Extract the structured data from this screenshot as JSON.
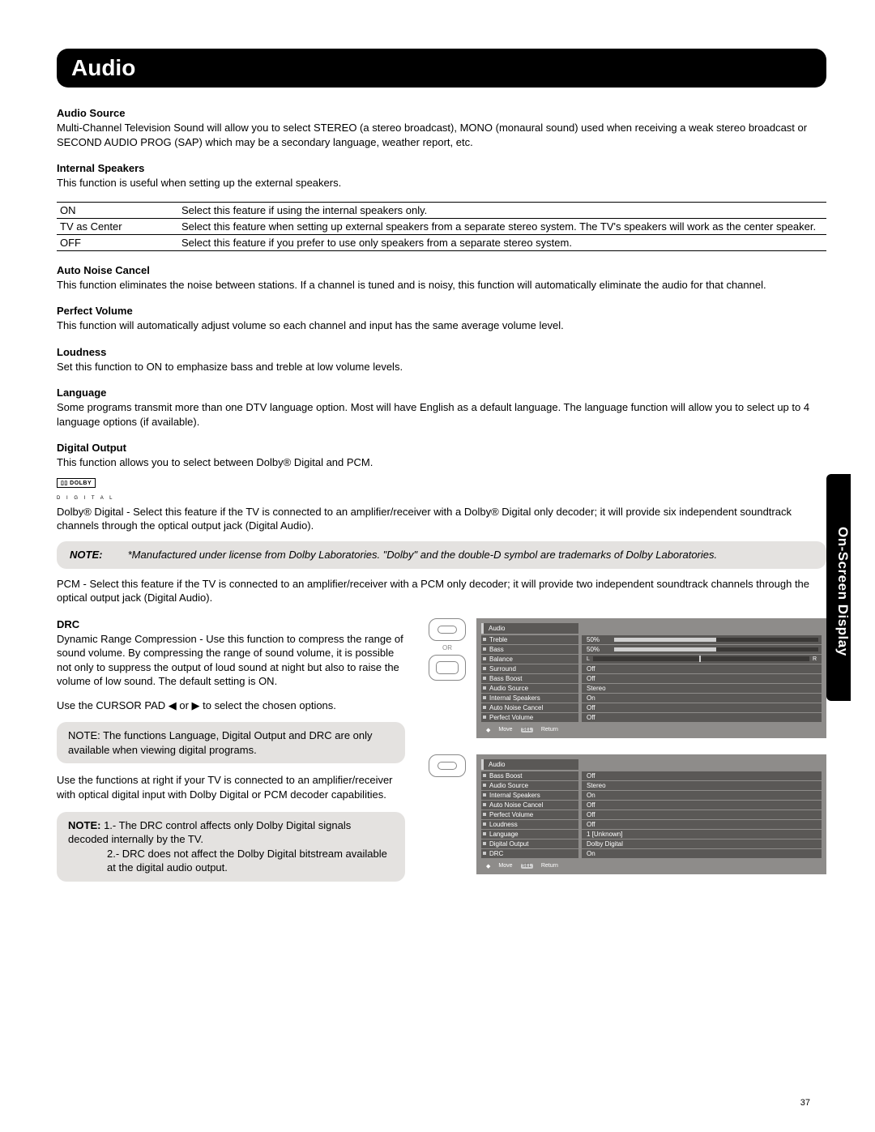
{
  "page": {
    "title": "Audio",
    "side_tab": "On-Screen Display",
    "page_number": "37"
  },
  "sections": {
    "audio_source": {
      "head": "Audio Source",
      "body": "Multi-Channel Television Sound will allow you to select STEREO (a stereo broadcast), MONO (monaural sound) used when receiving a weak stereo broadcast or SECOND AUDIO PROG (SAP) which may be a secondary language, weather report, etc."
    },
    "internal_speakers": {
      "head": "Internal Speakers",
      "body": "This function is useful when setting up the external speakers.",
      "table": {
        "r1c1": "ON",
        "r1c2": "Select this feature if using the internal speakers only.",
        "r2c1": "TV as Center",
        "r2c2": "Select this feature when setting up external speakers from a separate stereo system. The TV's speakers will work as the center speaker.",
        "r3c1": "OFF",
        "r3c2": "Select this feature if you prefer to use only speakers from a separate stereo system."
      }
    },
    "auto_noise": {
      "head": "Auto Noise Cancel",
      "body": "This function eliminates the noise between stations. If a channel is tuned and is noisy, this function will automatically eliminate the audio for that channel."
    },
    "perfect_volume": {
      "head": "Perfect Volume",
      "body": "This function will automatically adjust volume so each channel  and input has the same average volume level."
    },
    "loudness": {
      "head": "Loudness",
      "body": "Set this function to ON to emphasize bass and treble at low volume levels."
    },
    "language": {
      "head": "Language",
      "body": "Some programs transmit more than one DTV language option.  Most will have English as a default language.  The language function will allow you to select up to 4 language options (if available)."
    },
    "digital_output": {
      "head": "Digital Output",
      "body": "This function allows you to select between Dolby® Digital and PCM.",
      "dolby_badge": "▯▯ DOLBY",
      "dolby_sub": "D I G I T A L",
      "dolby_text": "Dolby® Digital - Select this feature if the TV is connected to an amplifier/receiver with a Dolby® Digital only decoder; it  will provide six independent soundtrack channels through the optical output jack (Digital Audio).",
      "note_label": "NOTE:",
      "note_text": "*Manufactured under license from Dolby Laboratories.  \"Dolby\" and the double-D symbol are trademarks of Dolby Laboratories.",
      "pcm_text": "PCM - Select this feature if the TV is connected to an amplifier/receiver with a PCM only decoder; it will provide two independent soundtrack channels through the optical output jack (Digital Audio)."
    },
    "drc": {
      "head": "DRC",
      "body": "Dynamic Range Compression - Use this function to compress the range of sound volume. By compressing the range of sound volume, it is possible not only to suppress the output of loud sound at night but also to raise the volume of low sound. The default setting is ON.",
      "cursor": "Use the CURSOR PAD ◀ or ▶ to select the chosen options.",
      "note1": "NOTE:  The functions Language, Digital Output and DRC are only available when viewing digital programs.",
      "amp": "Use the functions at right if your TV is connected to an amplifier/receiver with optical digital input with Dolby Digital or PCM decoder capabilities.",
      "note2_label": "NOTE:",
      "note2_1": "1.- The DRC control affects only Dolby Digital signals decoded internally by the TV.",
      "note2_2": "2.- DRC does not affect the Dolby Digital bitstream available at the digital audio output."
    }
  },
  "osd1": {
    "title": "Audio",
    "or": "OR",
    "rows": [
      {
        "label": "Treble",
        "value": "50%",
        "bar": true
      },
      {
        "label": "Bass",
        "value": "50%",
        "bar": true
      },
      {
        "label": "Balance",
        "value": "L / R",
        "balance": true
      },
      {
        "label": "Surround",
        "value": "Off"
      },
      {
        "label": "Bass Boost",
        "value": "Off"
      },
      {
        "label": "Audio Source",
        "value": "Stereo"
      },
      {
        "label": "Internal Speakers",
        "value": "On"
      },
      {
        "label": "Auto Noise Cancel",
        "value": "Off"
      },
      {
        "label": "Perfect Volume",
        "value": "Off"
      }
    ],
    "footer_move": "Move",
    "footer_sel": "SEL",
    "footer_return": "Return"
  },
  "osd2": {
    "title": "Audio",
    "rows": [
      {
        "label": "Bass Boost",
        "value": "Off"
      },
      {
        "label": "Audio Source",
        "value": "Stereo"
      },
      {
        "label": "Internal Speakers",
        "value": "On"
      },
      {
        "label": "Auto Noise Cancel",
        "value": "Off"
      },
      {
        "label": "Perfect Volume",
        "value": "Off"
      },
      {
        "label": "Loudness",
        "value": "Off"
      },
      {
        "label": "Language",
        "value": "1 [Unknown]"
      },
      {
        "label": "Digital Output",
        "value": "Dolby Digital"
      },
      {
        "label": "DRC",
        "value": "On"
      }
    ],
    "footer_move": "Move",
    "footer_sel": "SEL",
    "footer_return": "Return"
  },
  "colors": {
    "osd_bg": "#8e8c8a",
    "osd_cell": "#5a5856",
    "note_bg": "#e4e2e0"
  }
}
